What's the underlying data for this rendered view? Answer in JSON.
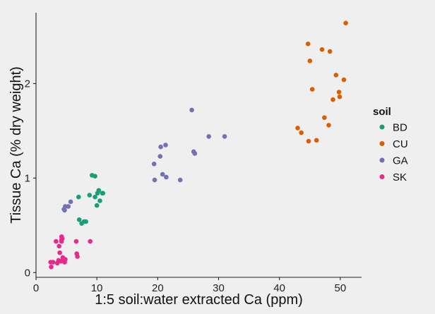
{
  "chart_data": {
    "type": "scatter",
    "xlabel": "1:5 soil:water extracted Ca (ppm)",
    "ylabel": "Tissue Ca (% dry weight)",
    "xlim": [
      0,
      53.5
    ],
    "ylim": [
      -0.05,
      2.75
    ],
    "x_ticks": [
      0,
      10,
      20,
      30,
      40,
      50
    ],
    "y_ticks": [
      0,
      1,
      2
    ],
    "grid": false,
    "legend": {
      "title": "soil",
      "placement": "right"
    },
    "series": [
      {
        "name": "BD",
        "color": "#1b9e77",
        "points": [
          [
            7.0,
            0.8
          ],
          [
            7.1,
            0.56
          ],
          [
            7.5,
            0.52
          ],
          [
            7.9,
            0.54
          ],
          [
            8.2,
            0.54
          ],
          [
            8.8,
            0.82
          ],
          [
            9.2,
            1.03
          ],
          [
            9.7,
            1.02
          ],
          [
            9.7,
            0.8
          ],
          [
            10.0,
            0.71
          ],
          [
            10.1,
            0.84
          ],
          [
            10.3,
            0.87
          ],
          [
            10.5,
            0.76
          ],
          [
            10.9,
            0.84
          ],
          [
            11.0,
            0.84
          ]
        ]
      },
      {
        "name": "CU",
        "color": "#d95f02",
        "points": [
          [
            43.0,
            1.53
          ],
          [
            43.6,
            1.48
          ],
          [
            44.7,
            2.42
          ],
          [
            44.8,
            1.39
          ],
          [
            45.0,
            2.24
          ],
          [
            45.4,
            1.94
          ],
          [
            46.1,
            1.4
          ],
          [
            47.0,
            2.36
          ],
          [
            47.4,
            1.64
          ],
          [
            48.1,
            1.56
          ],
          [
            48.3,
            2.34
          ],
          [
            48.8,
            1.83
          ],
          [
            49.3,
            2.09
          ],
          [
            49.8,
            1.91
          ],
          [
            49.9,
            1.86
          ],
          [
            50.6,
            2.04
          ],
          [
            50.9,
            2.64
          ]
        ]
      },
      {
        "name": "GA",
        "color": "#7570b3",
        "points": [
          [
            4.6,
            0.67
          ],
          [
            4.7,
            0.66
          ],
          [
            4.8,
            0.7
          ],
          [
            5.3,
            0.7
          ],
          [
            5.7,
            0.75
          ],
          [
            19.4,
            1.15
          ],
          [
            19.5,
            0.98
          ],
          [
            20.4,
            1.23
          ],
          [
            20.5,
            1.33
          ],
          [
            20.8,
            1.04
          ],
          [
            21.3,
            1.35
          ],
          [
            21.4,
            1.01
          ],
          [
            23.7,
            0.98
          ],
          [
            25.6,
            1.72
          ],
          [
            25.9,
            1.28
          ],
          [
            26.1,
            1.26
          ],
          [
            28.4,
            1.44
          ],
          [
            31.0,
            1.44
          ]
        ]
      },
      {
        "name": "SK",
        "color": "#e7298a",
        "points": [
          [
            2.4,
            0.11
          ],
          [
            2.5,
            0.06
          ],
          [
            2.8,
            0.11
          ],
          [
            3.3,
            0.33
          ],
          [
            3.5,
            0.1
          ],
          [
            3.7,
            0.13
          ],
          [
            3.8,
            0.28
          ],
          [
            3.9,
            0.21
          ],
          [
            4.1,
            0.12
          ],
          [
            4.2,
            0.38
          ],
          [
            4.2,
            0.35
          ],
          [
            4.2,
            0.33
          ],
          [
            4.3,
            0.36
          ],
          [
            4.4,
            0.16
          ],
          [
            4.6,
            0.12
          ],
          [
            4.7,
            0.11
          ],
          [
            4.8,
            0.14
          ],
          [
            6.6,
            0.33
          ],
          [
            6.7,
            0.2
          ],
          [
            6.8,
            0.17
          ],
          [
            8.9,
            0.33
          ]
        ]
      }
    ]
  }
}
